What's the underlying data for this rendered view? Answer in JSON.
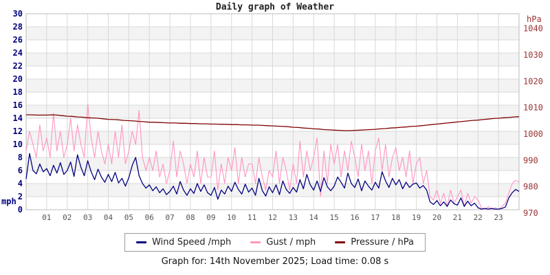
{
  "title": "Daily graph of Weather",
  "footer": {
    "text": "Graph for: 14th November 2025; Load time: 0.08 s"
  },
  "colors": {
    "wind": "#000080",
    "gust": "#ff94c2",
    "pressure": "#7f0000",
    "left_axis_text": "#000080",
    "right_axis_text": "#993333",
    "x_axis_text": "#555555",
    "grid_line": "#d8d8d8",
    "band_gray": "#f3f3f3",
    "plot_border": "#bbbbbb"
  },
  "legend": [
    {
      "label": "Wind Speed /mph",
      "color": "#000080"
    },
    {
      "label": "Gust / mph",
      "color": "#ff94c2"
    },
    {
      "label": "Pressure / hPa",
      "color": "#7f0000"
    }
  ],
  "axes": {
    "left": {
      "unit": "mph",
      "ticks": [
        0,
        2,
        4,
        6,
        8,
        10,
        12,
        14,
        16,
        18,
        20,
        22,
        24,
        26,
        28,
        30
      ]
    },
    "right": {
      "unit": "hPa",
      "ticks": [
        970,
        980,
        990,
        1000,
        1010,
        1020,
        1030,
        1040
      ]
    },
    "x": {
      "ticks": [
        "01",
        "02",
        "03",
        "04",
        "05",
        "06",
        "07",
        "08",
        "09",
        "10",
        "11",
        "12",
        "13",
        "14",
        "15",
        "16",
        "17",
        "18",
        "19",
        "20",
        "21",
        "22",
        "23"
      ]
    }
  },
  "chart_data": {
    "type": "line",
    "title": "Daily graph of Weather",
    "x_unit": "hour of day",
    "x_range": [
      0,
      24
    ],
    "left_axis": {
      "label": "mph",
      "range": [
        0,
        30
      ]
    },
    "right_axis": {
      "label": "hPa",
      "range": [
        970,
        1040
      ]
    },
    "grid": true,
    "legend_position": "bottom",
    "series": [
      {
        "name": "Wind Speed /mph",
        "axis": "left",
        "x_start": 0,
        "x_step": 0.1666667,
        "values": [
          4.7,
          8.6,
          6.0,
          5.5,
          7.0,
          5.8,
          6.3,
          5.2,
          6.8,
          5.6,
          7.2,
          5.4,
          6.0,
          7.3,
          5.1,
          8.4,
          6.5,
          5.2,
          7.5,
          5.8,
          4.6,
          6.2,
          5.0,
          4.2,
          5.4,
          4.3,
          5.7,
          4.1,
          4.8,
          3.6,
          4.9,
          6.8,
          8.0,
          5.2,
          4.0,
          3.3,
          3.8,
          2.9,
          3.5,
          2.6,
          3.2,
          2.3,
          2.8,
          3.6,
          2.4,
          4.3,
          3.0,
          2.2,
          3.2,
          2.5,
          4.0,
          2.8,
          3.8,
          2.6,
          2.2,
          3.4,
          1.6,
          3.0,
          2.4,
          3.6,
          2.8,
          4.2,
          3.1,
          2.4,
          3.9,
          2.7,
          3.3,
          2.2,
          4.8,
          2.9,
          2.1,
          3.5,
          2.6,
          3.8,
          2.3,
          4.4,
          3.1,
          2.5,
          3.4,
          2.7,
          4.6,
          3.2,
          5.4,
          3.8,
          3.0,
          4.4,
          2.8,
          4.9,
          3.5,
          2.9,
          3.6,
          5.0,
          4.2,
          3.3,
          5.6,
          4.0,
          3.4,
          4.7,
          2.9,
          4.4,
          3.6,
          3.0,
          4.2,
          3.3,
          5.8,
          4.4,
          3.4,
          4.8,
          3.8,
          4.6,
          3.2,
          4.2,
          3.4,
          3.9,
          4.1,
          3.3,
          3.7,
          3.0,
          1.2,
          0.8,
          1.4,
          0.6,
          1.2,
          0.5,
          1.5,
          0.9,
          0.7,
          1.8,
          0.5,
          1.3,
          0.6,
          1.0,
          0.3,
          0.1,
          0.2,
          0.1,
          0.2,
          0.1,
          0.1,
          0.2,
          0.4,
          1.8,
          2.6,
          3.1,
          2.8
        ]
      },
      {
        "name": "Gust / mph",
        "axis": "left",
        "x_start": 0,
        "x_step": 0.1666667,
        "values": [
          9,
          12,
          10,
          8,
          13,
          9,
          11,
          8,
          14.8,
          9,
          12,
          8,
          10,
          14,
          9,
          13,
          10,
          8,
          16.2,
          11,
          8,
          12,
          9,
          7,
          10,
          7,
          12,
          8,
          13,
          7,
          9,
          12,
          10,
          15.2,
          8,
          6,
          8,
          6,
          9,
          5,
          7,
          4,
          6,
          10.5,
          5,
          9,
          7,
          4,
          7,
          5,
          9,
          4,
          8,
          5,
          5,
          9,
          3,
          7,
          4,
          8,
          6,
          9.5,
          4,
          8,
          5,
          7,
          7,
          4,
          8,
          5,
          3,
          6,
          5,
          9,
          4,
          8,
          6,
          3,
          7,
          4,
          10.5,
          5,
          9,
          6,
          8,
          11,
          2,
          9,
          4,
          10,
          7,
          10,
          5,
          9,
          6,
          10.5,
          8,
          5,
          10,
          6,
          9,
          4,
          9,
          11,
          6,
          10,
          5,
          8,
          9.5,
          6,
          8,
          5,
          9,
          4,
          7,
          8,
          4,
          6,
          2,
          1.5,
          3,
          1,
          2.5,
          0.5,
          3,
          1,
          2,
          3,
          0.5,
          2.5,
          1,
          2,
          1.5,
          0.3,
          0,
          0.5,
          0,
          0.3,
          0,
          0.5,
          1,
          2.5,
          4,
          4.5,
          4.2
        ]
      },
      {
        "name": "Pressure / hPa",
        "axis": "right",
        "x_start": 0,
        "x_step": 0.25,
        "values": [
          1007.3,
          1007.3,
          1007.2,
          1007.2,
          1007.2,
          1007.3,
          1007.2,
          1007.0,
          1006.8,
          1006.7,
          1006.5,
          1006.4,
          1006.2,
          1006.1,
          1006.0,
          1005.8,
          1005.6,
          1005.5,
          1005.4,
          1005.2,
          1005.1,
          1005.0,
          1004.8,
          1004.7,
          1004.5,
          1004.5,
          1004.4,
          1004.3,
          1004.2,
          1004.2,
          1004.1,
          1004.1,
          1004.0,
          1004.0,
          1003.9,
          1003.9,
          1003.8,
          1003.8,
          1003.7,
          1003.7,
          1003.6,
          1003.6,
          1003.5,
          1003.5,
          1003.4,
          1003.4,
          1003.3,
          1003.2,
          1003.1,
          1003.0,
          1002.9,
          1002.8,
          1002.6,
          1002.5,
          1002.3,
          1002.2,
          1002.0,
          1001.9,
          1001.7,
          1001.6,
          1001.5,
          1001.4,
          1001.3,
          1001.3,
          1001.4,
          1001.5,
          1001.6,
          1001.7,
          1001.8,
          1002.0,
          1002.1,
          1002.3,
          1002.4,
          1002.6,
          1002.7,
          1002.9,
          1003.0,
          1003.2,
          1003.4,
          1003.6,
          1003.8,
          1004.0,
          1004.2,
          1004.4,
          1004.6,
          1004.8,
          1005.0,
          1005.2,
          1005.3,
          1005.5,
          1005.7,
          1005.9,
          1006.0,
          1006.2,
          1006.3,
          1006.5,
          1006.6
        ]
      }
    ]
  }
}
